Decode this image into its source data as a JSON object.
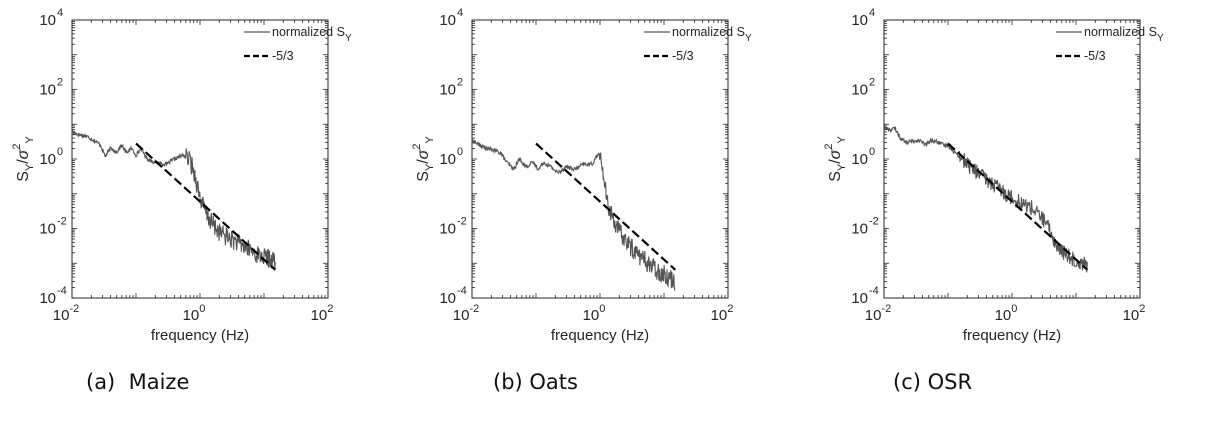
{
  "chart_data": [
    {
      "type": "line",
      "panel": "maize",
      "caption": "(a)  Maize",
      "xlabel": "frequency (Hz)",
      "ylabel_base": "S",
      "ylabel_sub": "Y",
      "ylabel_den_base": "σ",
      "ylabel_den_sup": "2",
      "ylabel_den_sub": "Y",
      "xscale": "log",
      "yscale": "log",
      "xlim": [
        0.01,
        100
      ],
      "ylim": [
        0.0001,
        10000
      ],
      "xticks": [
        {
          "value": 0.01,
          "base": "10",
          "exp": "-2"
        },
        {
          "value": 1,
          "base": "10",
          "exp": "0"
        },
        {
          "value": 100,
          "base": "10",
          "exp": "2"
        }
      ],
      "yticks": [
        {
          "value": 0.0001,
          "base": "10",
          "exp": "-4"
        },
        {
          "value": 0.01,
          "base": "10",
          "exp": "-2"
        },
        {
          "value": 1,
          "base": "10",
          "exp": "0"
        },
        {
          "value": 100,
          "base": "10",
          "exp": "2"
        },
        {
          "value": 10000,
          "base": "10",
          "exp": "4"
        }
      ],
      "grid": false,
      "legend_position": "top-right",
      "legend": [
        {
          "label_base": "normalized S",
          "label_sub": "Y",
          "style": "solid"
        },
        {
          "label_base": "-5/3",
          "label_sub": "",
          "style": "dashed"
        }
      ],
      "series": [
        {
          "name": "normalized S_Y",
          "style": "solid",
          "color": "#555555",
          "points": [
            [
              0.01,
              6.0
            ],
            [
              0.013,
              5.0
            ],
            [
              0.017,
              4.5
            ],
            [
              0.022,
              3.5
            ],
            [
              0.028,
              2.5
            ],
            [
              0.033,
              1.2
            ],
            [
              0.04,
              2.0
            ],
            [
              0.05,
              1.6
            ],
            [
              0.06,
              2.5
            ],
            [
              0.07,
              1.5
            ],
            [
              0.085,
              2.0
            ],
            [
              0.1,
              1.3
            ],
            [
              0.12,
              2.0
            ],
            [
              0.15,
              1.0
            ],
            [
              0.2,
              0.8
            ],
            [
              0.3,
              0.7
            ],
            [
              0.4,
              1.0
            ],
            [
              0.55,
              1.3
            ],
            [
              0.7,
              0.9
            ],
            [
              0.85,
              0.3
            ],
            [
              1.0,
              0.08
            ],
            [
              1.2,
              0.03
            ],
            [
              1.5,
              0.015
            ],
            [
              2.0,
              0.008
            ],
            [
              3.0,
              0.005
            ],
            [
              5.0,
              0.003
            ],
            [
              7.0,
              0.002
            ],
            [
              10.0,
              0.0015
            ],
            [
              15.0,
              0.0012
            ]
          ],
          "noise_from": 0.6,
          "noise_amp": 0.55
        },
        {
          "name": "-5/3",
          "style": "dashed",
          "color": "#000000",
          "points": [
            [
              0.1,
              2.8
            ],
            [
              15.0,
              0.00065
            ]
          ]
        }
      ]
    },
    {
      "type": "line",
      "panel": "oats",
      "caption": "(b) Oats",
      "xlabel": "frequency (Hz)",
      "ylabel_base": "S",
      "ylabel_sub": "Y",
      "ylabel_den_base": "σ",
      "ylabel_den_sup": "2",
      "ylabel_den_sub": "Y",
      "xscale": "log",
      "yscale": "log",
      "xlim": [
        0.01,
        100
      ],
      "ylim": [
        0.0001,
        10000
      ],
      "xticks": [
        {
          "value": 0.01,
          "base": "10",
          "exp": "-2"
        },
        {
          "value": 1,
          "base": "10",
          "exp": "0"
        },
        {
          "value": 100,
          "base": "10",
          "exp": "2"
        }
      ],
      "yticks": [
        {
          "value": 0.0001,
          "base": "10",
          "exp": "-4"
        },
        {
          "value": 0.01,
          "base": "10",
          "exp": "-2"
        },
        {
          "value": 1,
          "base": "10",
          "exp": "0"
        },
        {
          "value": 100,
          "base": "10",
          "exp": "2"
        },
        {
          "value": 10000,
          "base": "10",
          "exp": "4"
        }
      ],
      "grid": false,
      "legend_position": "top-right",
      "legend": [
        {
          "label_base": "normalized S",
          "label_sub": "Y",
          "style": "solid"
        },
        {
          "label_base": "-5/3",
          "label_sub": "",
          "style": "dashed"
        }
      ],
      "series": [
        {
          "name": "normalized S_Y",
          "style": "solid",
          "color": "#555555",
          "points": [
            [
              0.01,
              3.5
            ],
            [
              0.013,
              2.5
            ],
            [
              0.017,
              2.0
            ],
            [
              0.022,
              1.8
            ],
            [
              0.028,
              1.5
            ],
            [
              0.035,
              0.8
            ],
            [
              0.045,
              0.5
            ],
            [
              0.055,
              1.0
            ],
            [
              0.07,
              0.6
            ],
            [
              0.09,
              0.8
            ],
            [
              0.11,
              0.5
            ],
            [
              0.13,
              0.8
            ],
            [
              0.17,
              0.6
            ],
            [
              0.22,
              0.4
            ],
            [
              0.3,
              0.6
            ],
            [
              0.4,
              0.5
            ],
            [
              0.55,
              0.7
            ],
            [
              0.75,
              0.7
            ],
            [
              0.95,
              1.5
            ],
            [
              1.1,
              0.5
            ],
            [
              1.3,
              0.05
            ],
            [
              1.6,
              0.02
            ],
            [
              2.0,
              0.008
            ],
            [
              3.0,
              0.003
            ],
            [
              5.0,
              0.0012
            ],
            [
              8.0,
              0.0006
            ],
            [
              12.0,
              0.0004
            ],
            [
              15.0,
              0.0003
            ]
          ],
          "noise_from": 1.0,
          "noise_amp": 0.55
        },
        {
          "name": "-5/3",
          "style": "dashed",
          "color": "#000000",
          "points": [
            [
              0.1,
              2.8
            ],
            [
              15.0,
              0.00065
            ]
          ]
        }
      ]
    },
    {
      "type": "line",
      "panel": "osr",
      "caption": "(c) OSR",
      "xlabel": "frequency (Hz)",
      "ylabel_base": "S",
      "ylabel_sub": "Y",
      "ylabel_den_base": "σ",
      "ylabel_den_sup": "2",
      "ylabel_den_sub": "Y",
      "xscale": "log",
      "yscale": "log",
      "xlim": [
        0.01,
        100
      ],
      "ylim": [
        0.0001,
        10000
      ],
      "xticks": [
        {
          "value": 0.01,
          "base": "10",
          "exp": "-2"
        },
        {
          "value": 1,
          "base": "10",
          "exp": "0"
        },
        {
          "value": 100,
          "base": "10",
          "exp": "2"
        }
      ],
      "yticks": [
        {
          "value": 0.0001,
          "base": "10",
          "exp": "-4"
        },
        {
          "value": 0.01,
          "base": "10",
          "exp": "-2"
        },
        {
          "value": 1,
          "base": "10",
          "exp": "0"
        },
        {
          "value": 100,
          "base": "10",
          "exp": "2"
        },
        {
          "value": 10000,
          "base": "10",
          "exp": "4"
        }
      ],
      "grid": false,
      "legend_position": "top-right",
      "legend": [
        {
          "label_base": "normalized S",
          "label_sub": "Y",
          "style": "solid"
        },
        {
          "label_base": "-5/3",
          "label_sub": "",
          "style": "dashed"
        }
      ],
      "series": [
        {
          "name": "normalized S_Y",
          "style": "solid",
          "color": "#555555",
          "points": [
            [
              0.01,
              8.0
            ],
            [
              0.012,
              7.0
            ],
            [
              0.015,
              7.5
            ],
            [
              0.018,
              4.0
            ],
            [
              0.022,
              3.0
            ],
            [
              0.028,
              3.2
            ],
            [
              0.035,
              3.5
            ],
            [
              0.045,
              2.5
            ],
            [
              0.055,
              3.5
            ],
            [
              0.07,
              3.0
            ],
            [
              0.085,
              2.5
            ],
            [
              0.1,
              2.5
            ],
            [
              0.13,
              1.5
            ],
            [
              0.17,
              1.0
            ],
            [
              0.22,
              0.6
            ],
            [
              0.3,
              0.4
            ],
            [
              0.4,
              0.25
            ],
            [
              0.6,
              0.15
            ],
            [
              0.8,
              0.1
            ],
            [
              1.0,
              0.08
            ],
            [
              1.5,
              0.05
            ],
            [
              2.0,
              0.04
            ],
            [
              3.0,
              0.02
            ],
            [
              4.0,
              0.008
            ],
            [
              5.0,
              0.003
            ],
            [
              7.0,
              0.0018
            ],
            [
              10.0,
              0.0012
            ],
            [
              15.0,
              0.0009
            ]
          ],
          "noise_from": 0.15,
          "noise_amp": 0.45
        },
        {
          "name": "-5/3",
          "style": "dashed",
          "color": "#000000",
          "points": [
            [
              0.1,
              2.8
            ],
            [
              15.0,
              0.00065
            ]
          ]
        }
      ]
    }
  ]
}
